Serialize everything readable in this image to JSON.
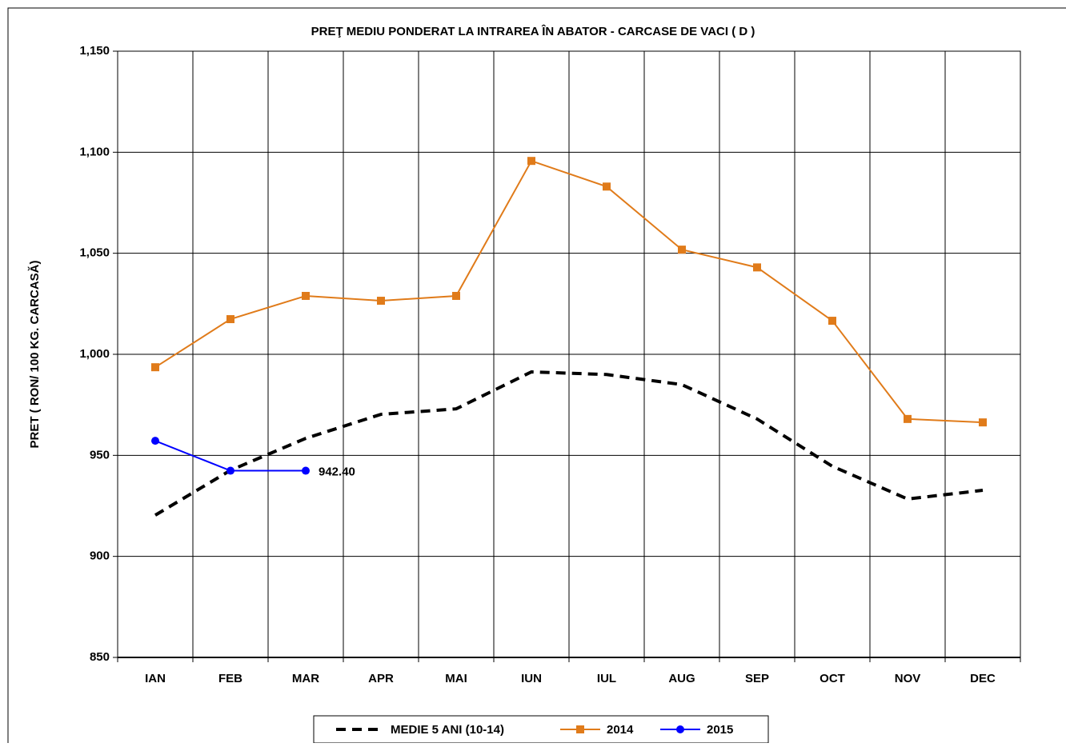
{
  "chart_data": {
    "type": "line",
    "title": "PREŢ MEDIU PONDERAT  LA INTRAREA ÎN ABATOR - CARCASE DE VACI ( D )",
    "y_label": "PRET ( RON/ 100 KG. CARCASĂ)",
    "categories": [
      "IAN",
      "FEB",
      "MAR",
      "APR",
      "MAI",
      "IUN",
      "IUL",
      "AUG",
      "SEP",
      "OCT",
      "NOV",
      "DEC"
    ],
    "series": [
      {
        "name": "MEDIE 5 ANI (10-14)",
        "color": "#000000",
        "dash": true,
        "marker": "none",
        "values": [
          920.4,
          942.6,
          958.4,
          970.3,
          973,
          991.3,
          990,
          985,
          968,
          944.6,
          928.4,
          932.7
        ]
      },
      {
        "name": "2014",
        "color": "#e07b1a",
        "dash": false,
        "marker": "square",
        "values": [
          993.6,
          1017.4,
          1028.9,
          1026.5,
          1028.9,
          1095.7,
          1083,
          1051.8,
          1043,
          1016.6,
          968,
          966.3
        ]
      },
      {
        "name": "2015",
        "color": "#0000ff",
        "dash": false,
        "marker": "circle",
        "values": [
          957.2,
          942.4,
          942.4,
          null,
          null,
          null,
          null,
          null,
          null,
          null,
          null,
          null
        ],
        "value_labels": [
          null,
          null,
          "942.40",
          null,
          null,
          null,
          null,
          null,
          null,
          null,
          null,
          null
        ]
      }
    ],
    "ylim": [
      850,
      1150
    ],
    "yticks": [
      850,
      900,
      950,
      {
        "value": 1000,
        "label": "1,000"
      },
      {
        "value": 1050,
        "label": "1,050"
      },
      {
        "value": 1100,
        "label": "1,100"
      },
      {
        "value": 1150,
        "label": "1,150"
      }
    ],
    "grid": true,
    "legend": "bottom"
  }
}
